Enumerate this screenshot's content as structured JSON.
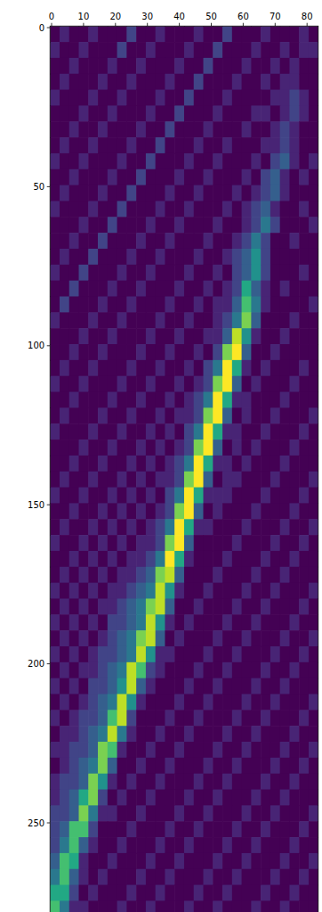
{
  "chart_data": {
    "type": "heatmap",
    "color": "viridis",
    "xlim": [
      -0.5,
      83.5
    ],
    "ylim": [
      279.5,
      -0.5
    ],
    "xticks": [
      0,
      10,
      20,
      30,
      40,
      50,
      60,
      70,
      80
    ],
    "yticks": [
      0,
      50,
      100,
      150,
      200,
      250
    ],
    "zlim": [
      0,
      10
    ],
    "cells": [
      [
        0,
        1,
        0,
        0,
        1,
        0,
        0,
        0,
        2,
        0,
        0,
        1,
        0,
        0,
        0,
        1,
        0,
        0,
        2,
        0,
        0,
        0,
        1,
        0,
        0,
        0,
        1,
        0
      ],
      [
        1,
        0,
        0,
        1,
        0,
        0,
        0,
        2,
        0,
        0,
        1,
        0,
        0,
        0,
        1,
        0,
        0,
        2,
        0,
        0,
        0,
        1,
        0,
        0,
        1,
        0,
        1,
        1
      ],
      [
        0,
        0,
        1,
        0,
        0,
        0,
        1,
        0,
        0,
        1,
        0,
        0,
        0,
        1,
        0,
        0,
        2,
        0,
        0,
        0,
        1,
        0,
        0,
        1,
        0,
        1,
        0,
        0
      ],
      [
        0,
        1,
        0,
        0,
        0,
        1,
        0,
        0,
        1,
        0,
        0,
        0,
        1,
        0,
        0,
        2,
        0,
        0,
        0,
        1,
        0,
        0,
        1,
        0,
        1,
        1,
        0,
        0
      ],
      [
        1,
        0,
        0,
        0,
        1,
        0,
        0,
        1,
        0,
        0,
        0,
        1,
        0,
        0,
        2,
        0,
        0,
        0,
        1,
        0,
        0,
        0,
        0,
        1,
        1,
        2,
        1,
        0
      ],
      [
        0,
        0,
        0,
        1,
        0,
        0,
        1,
        0,
        0,
        0,
        1,
        0,
        0,
        2,
        0,
        0,
        0,
        1,
        0,
        0,
        0,
        1,
        1,
        0,
        1,
        2,
        1,
        0
      ],
      [
        0,
        0,
        1,
        0,
        0,
        1,
        0,
        0,
        0,
        1,
        0,
        0,
        2,
        0,
        0,
        0,
        1,
        0,
        0,
        0,
        1,
        0,
        0,
        1,
        2,
        1,
        0,
        0
      ],
      [
        0,
        1,
        0,
        0,
        1,
        0,
        0,
        0,
        1,
        0,
        0,
        2,
        0,
        0,
        0,
        1,
        0,
        0,
        1,
        0,
        0,
        0,
        1,
        1,
        2,
        1,
        0,
        0
      ],
      [
        1,
        0,
        0,
        1,
        0,
        0,
        0,
        1,
        0,
        0,
        2,
        0,
        0,
        0,
        1,
        0,
        0,
        1,
        0,
        0,
        0,
        1,
        0,
        2,
        3,
        1,
        0,
        1
      ],
      [
        0,
        0,
        1,
        0,
        0,
        0,
        1,
        0,
        0,
        2,
        0,
        0,
        0,
        1,
        0,
        0,
        1,
        0,
        0,
        0,
        1,
        0,
        2,
        3,
        1,
        0,
        1,
        0
      ],
      [
        0,
        1,
        0,
        0,
        0,
        1,
        0,
        0,
        2,
        0,
        0,
        0,
        1,
        0,
        0,
        1,
        0,
        0,
        0,
        1,
        0,
        1,
        2,
        3,
        1,
        0,
        0,
        0
      ],
      [
        1,
        0,
        0,
        0,
        1,
        0,
        0,
        2,
        0,
        0,
        0,
        1,
        0,
        0,
        1,
        0,
        0,
        0,
        1,
        0,
        1,
        2,
        3,
        1,
        0,
        0,
        1,
        0
      ],
      [
        0,
        0,
        0,
        1,
        0,
        0,
        2,
        0,
        0,
        0,
        1,
        0,
        0,
        1,
        0,
        0,
        0,
        1,
        0,
        0,
        1,
        2,
        4,
        2,
        0,
        0,
        0,
        1
      ],
      [
        0,
        0,
        1,
        0,
        0,
        2,
        0,
        0,
        0,
        1,
        0,
        0,
        1,
        0,
        0,
        0,
        1,
        0,
        0,
        1,
        2,
        4,
        2,
        0,
        0,
        1,
        0,
        0
      ],
      [
        0,
        1,
        0,
        0,
        2,
        0,
        0,
        0,
        1,
        0,
        0,
        1,
        0,
        0,
        0,
        1,
        0,
        0,
        1,
        2,
        3,
        5,
        2,
        0,
        0,
        0,
        0,
        0
      ],
      [
        1,
        0,
        0,
        2,
        0,
        0,
        0,
        1,
        0,
        0,
        1,
        0,
        0,
        0,
        1,
        0,
        0,
        1,
        0,
        2,
        3,
        5,
        2,
        0,
        0,
        0,
        1,
        0
      ],
      [
        0,
        0,
        2,
        0,
        0,
        0,
        1,
        0,
        0,
        1,
        0,
        0,
        0,
        1,
        0,
        0,
        1,
        0,
        1,
        2,
        6,
        3,
        1,
        0,
        1,
        0,
        0,
        0
      ],
      [
        0,
        2,
        0,
        0,
        0,
        1,
        0,
        0,
        1,
        0,
        0,
        0,
        1,
        0,
        0,
        1,
        0,
        1,
        1,
        3,
        7,
        4,
        1,
        0,
        0,
        0,
        0,
        1
      ],
      [
        1,
        0,
        0,
        0,
        1,
        0,
        0,
        1,
        0,
        0,
        0,
        1,
        0,
        0,
        1,
        0,
        0,
        1,
        2,
        4,
        8,
        3,
        0,
        0,
        0,
        1,
        0,
        0
      ],
      [
        0,
        0,
        0,
        1,
        0,
        0,
        1,
        0,
        0,
        0,
        1,
        0,
        0,
        1,
        0,
        0,
        1,
        1,
        3,
        9,
        5,
        1,
        0,
        0,
        1,
        0,
        0,
        0
      ],
      [
        0,
        0,
        1,
        0,
        0,
        1,
        0,
        0,
        0,
        1,
        0,
        0,
        1,
        0,
        0,
        1,
        0,
        2,
        8,
        10,
        3,
        0,
        0,
        1,
        0,
        0,
        0,
        0
      ],
      [
        0,
        1,
        0,
        0,
        1,
        0,
        0,
        0,
        1,
        0,
        0,
        1,
        0,
        0,
        1,
        0,
        2,
        4,
        10,
        6,
        1,
        0,
        1,
        0,
        0,
        0,
        1,
        0
      ],
      [
        1,
        0,
        0,
        1,
        0,
        0,
        0,
        1,
        0,
        0,
        1,
        0,
        0,
        1,
        0,
        1,
        2,
        8,
        10,
        3,
        0,
        1,
        0,
        0,
        0,
        1,
        0,
        0
      ],
      [
        0,
        0,
        1,
        0,
        0,
        0,
        1,
        0,
        0,
        1,
        0,
        0,
        1,
        0,
        1,
        2,
        4,
        10,
        6,
        1,
        1,
        0,
        0,
        0,
        1,
        0,
        0,
        0
      ],
      [
        0,
        1,
        0,
        0,
        0,
        1,
        0,
        0,
        1,
        0,
        0,
        1,
        0,
        1,
        1,
        2,
        8,
        10,
        3,
        0,
        1,
        0,
        0,
        1,
        0,
        0,
        0,
        1
      ],
      [
        1,
        0,
        0,
        0,
        1,
        0,
        0,
        1,
        0,
        0,
        1,
        0,
        1,
        0,
        2,
        4,
        10,
        6,
        1,
        1,
        0,
        0,
        1,
        0,
        0,
        0,
        1,
        0
      ],
      [
        0,
        0,
        0,
        1,
        0,
        0,
        1,
        0,
        0,
        1,
        0,
        1,
        0,
        1,
        2,
        8,
        10,
        3,
        0,
        1,
        0,
        1,
        0,
        0,
        0,
        1,
        0,
        0
      ],
      [
        0,
        0,
        1,
        0,
        0,
        1,
        0,
        0,
        1,
        0,
        1,
        0,
        1,
        2,
        4,
        10,
        6,
        1,
        1,
        0,
        1,
        0,
        0,
        0,
        1,
        0,
        0,
        0
      ],
      [
        0,
        1,
        0,
        0,
        1,
        0,
        0,
        1,
        0,
        1,
        0,
        1,
        1,
        2,
        8,
        10,
        3,
        0,
        1,
        1,
        0,
        0,
        0,
        1,
        0,
        0,
        0,
        1
      ],
      [
        1,
        0,
        0,
        1,
        0,
        0,
        1,
        0,
        1,
        0,
        1,
        0,
        2,
        4,
        10,
        6,
        1,
        1,
        1,
        0,
        0,
        0,
        1,
        0,
        0,
        0,
        1,
        0
      ],
      [
        0,
        0,
        1,
        0,
        0,
        1,
        0,
        1,
        0,
        1,
        0,
        1,
        2,
        8,
        10,
        3,
        0,
        1,
        0,
        0,
        0,
        1,
        0,
        0,
        0,
        1,
        0,
        0
      ],
      [
        0,
        1,
        0,
        0,
        1,
        0,
        1,
        0,
        1,
        0,
        1,
        2,
        4,
        10,
        6,
        1,
        1,
        0,
        0,
        0,
        1,
        0,
        0,
        0,
        1,
        0,
        0,
        1
      ],
      [
        1,
        0,
        0,
        1,
        0,
        1,
        0,
        1,
        0,
        1,
        1,
        2,
        8,
        10,
        3,
        0,
        0,
        0,
        0,
        1,
        0,
        0,
        0,
        1,
        0,
        0,
        1,
        0
      ],
      [
        0,
        0,
        1,
        0,
        1,
        0,
        1,
        0,
        1,
        1,
        2,
        4,
        10,
        6,
        1,
        0,
        0,
        0,
        1,
        0,
        0,
        0,
        1,
        0,
        0,
        1,
        0,
        0
      ],
      [
        0,
        1,
        0,
        1,
        0,
        1,
        0,
        1,
        1,
        2,
        3,
        8,
        9,
        3,
        0,
        0,
        0,
        1,
        0,
        0,
        0,
        1,
        0,
        0,
        1,
        0,
        0,
        0
      ],
      [
        1,
        0,
        1,
        0,
        1,
        0,
        1,
        1,
        2,
        3,
        4,
        9,
        5,
        1,
        0,
        0,
        1,
        0,
        0,
        0,
        1,
        0,
        0,
        1,
        0,
        0,
        0,
        1
      ],
      [
        0,
        1,
        0,
        1,
        0,
        1,
        1,
        2,
        3,
        4,
        8,
        9,
        3,
        0,
        0,
        1,
        0,
        0,
        0,
        1,
        0,
        0,
        1,
        0,
        0,
        0,
        1,
        0
      ],
      [
        1,
        0,
        1,
        0,
        1,
        0,
        2,
        2,
        3,
        4,
        9,
        5,
        1,
        0,
        1,
        0,
        0,
        0,
        1,
        0,
        0,
        1,
        0,
        0,
        0,
        1,
        0,
        0
      ],
      [
        0,
        1,
        0,
        1,
        0,
        1,
        2,
        3,
        4,
        8,
        9,
        3,
        0,
        1,
        0,
        0,
        0,
        1,
        0,
        0,
        1,
        0,
        0,
        0,
        1,
        0,
        0,
        1
      ],
      [
        1,
        0,
        1,
        0,
        1,
        2,
        2,
        3,
        4,
        9,
        5,
        1,
        1,
        0,
        0,
        0,
        1,
        0,
        0,
        1,
        0,
        0,
        0,
        1,
        0,
        0,
        1,
        0
      ],
      [
        0,
        1,
        0,
        1,
        1,
        2,
        3,
        4,
        9,
        7,
        2,
        1,
        0,
        0,
        0,
        1,
        0,
        0,
        1,
        0,
        0,
        0,
        1,
        0,
        0,
        1,
        0,
        0
      ],
      [
        1,
        0,
        1,
        0,
        2,
        2,
        3,
        5,
        9,
        3,
        1,
        0,
        0,
        0,
        1,
        0,
        0,
        1,
        0,
        0,
        0,
        1,
        0,
        0,
        1,
        0,
        0,
        0
      ],
      [
        0,
        1,
        0,
        1,
        2,
        3,
        4,
        9,
        5,
        1,
        0,
        0,
        0,
        1,
        0,
        0,
        1,
        0,
        0,
        0,
        1,
        0,
        0,
        1,
        0,
        0,
        0,
        1
      ],
      [
        1,
        0,
        1,
        2,
        2,
        3,
        7,
        9,
        2,
        0,
        0,
        0,
        1,
        0,
        0,
        1,
        0,
        0,
        0,
        1,
        0,
        0,
        1,
        0,
        0,
        0,
        1,
        0
      ],
      [
        0,
        1,
        1,
        2,
        3,
        4,
        9,
        4,
        1,
        0,
        0,
        1,
        0,
        0,
        1,
        0,
        0,
        0,
        1,
        0,
        0,
        1,
        0,
        0,
        0,
        1,
        0,
        0
      ],
      [
        1,
        1,
        2,
        2,
        3,
        8,
        7,
        1,
        0,
        0,
        1,
        0,
        0,
        1,
        0,
        0,
        0,
        1,
        0,
        0,
        1,
        0,
        0,
        0,
        1,
        0,
        0,
        1
      ],
      [
        0,
        1,
        2,
        3,
        4,
        8,
        3,
        0,
        0,
        1,
        0,
        0,
        1,
        0,
        0,
        0,
        1,
        0,
        0,
        1,
        0,
        0,
        0,
        1,
        0,
        0,
        1,
        0
      ],
      [
        1,
        2,
        2,
        3,
        8,
        5,
        1,
        0,
        1,
        0,
        0,
        1,
        0,
        0,
        0,
        1,
        0,
        0,
        1,
        0,
        0,
        0,
        1,
        0,
        0,
        1,
        0,
        0
      ],
      [
        1,
        2,
        3,
        6,
        8,
        2,
        0,
        1,
        0,
        0,
        1,
        0,
        0,
        0,
        1,
        0,
        0,
        1,
        0,
        0,
        0,
        1,
        0,
        0,
        1,
        0,
        0,
        0
      ],
      [
        2,
        2,
        3,
        8,
        4,
        1,
        1,
        0,
        0,
        1,
        0,
        0,
        0,
        1,
        0,
        0,
        1,
        0,
        0,
        0,
        1,
        0,
        0,
        1,
        0,
        0,
        0,
        1
      ],
      [
        2,
        3,
        7,
        7,
        2,
        0,
        0,
        0,
        1,
        0,
        0,
        0,
        1,
        0,
        0,
        1,
        0,
        0,
        0,
        1,
        0,
        0,
        1,
        0,
        0,
        0,
        1,
        0
      ],
      [
        2,
        4,
        7,
        3,
        1,
        0,
        0,
        1,
        0,
        0,
        0,
        1,
        0,
        0,
        1,
        0,
        0,
        0,
        1,
        0,
        0,
        1,
        0,
        0,
        0,
        1,
        0,
        0
      ],
      [
        3,
        7,
        6,
        1,
        0,
        0,
        1,
        0,
        0,
        0,
        1,
        0,
        0,
        1,
        0,
        0,
        0,
        1,
        0,
        0,
        1,
        0,
        0,
        0,
        1,
        0,
        0,
        1
      ],
      [
        4,
        7,
        3,
        1,
        0,
        1,
        0,
        0,
        0,
        1,
        0,
        0,
        1,
        0,
        0,
        0,
        1,
        0,
        0,
        1,
        0,
        0,
        0,
        1,
        0,
        0,
        1,
        0
      ],
      [
        6,
        6,
        2,
        0,
        1,
        0,
        0,
        0,
        1,
        0,
        0,
        1,
        0,
        0,
        0,
        1,
        0,
        0,
        1,
        0,
        0,
        0,
        1,
        0,
        0,
        1,
        0,
        0
      ],
      [
        7,
        4,
        1,
        1,
        0,
        0,
        0,
        1,
        0,
        0,
        1,
        0,
        0,
        0,
        1,
        0,
        0,
        1,
        0,
        0,
        0,
        1,
        0,
        0,
        1,
        0,
        0,
        0
      ]
    ]
  }
}
